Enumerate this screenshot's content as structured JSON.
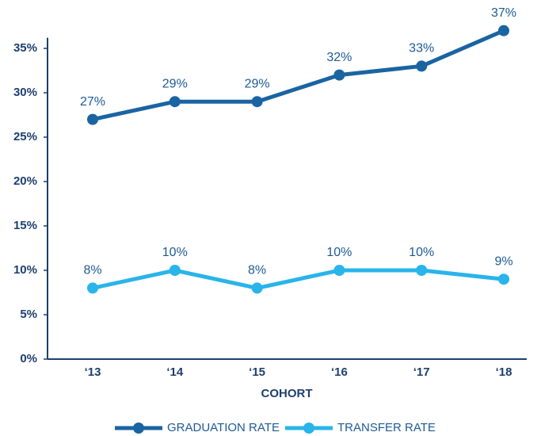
{
  "chart_data": {
    "type": "line",
    "x_label": "COHORT",
    "categories": [
      "‘13",
      "‘14",
      "‘15",
      "‘16",
      "‘17",
      "‘18"
    ],
    "series": [
      {
        "name": "GRADUATION RATE",
        "color": "#1a64a2",
        "values": [
          27,
          29,
          29,
          32,
          33,
          37
        ],
        "value_labels": [
          "27%",
          "29%",
          "29%",
          "32%",
          "33%",
          "37%"
        ]
      },
      {
        "name": "TRANSFER RATE",
        "color": "#29b4ea",
        "values": [
          8,
          10,
          8,
          10,
          10,
          9
        ],
        "value_labels": [
          "8%",
          "10%",
          "8%",
          "10%",
          "10%",
          "9%"
        ]
      }
    ],
    "ylim": [
      0,
      36.2
    ],
    "yticks": [
      {
        "value": 0,
        "label": "0%"
      },
      {
        "value": 5,
        "label": "5%"
      },
      {
        "value": 10,
        "label": "10%"
      },
      {
        "value": 15,
        "label": "15%"
      },
      {
        "value": 20,
        "label": "20%"
      },
      {
        "value": 25,
        "label": "25%"
      },
      {
        "value": 30,
        "label": "30%"
      },
      {
        "value": 35,
        "label": "35%"
      }
    ],
    "grid": false
  }
}
